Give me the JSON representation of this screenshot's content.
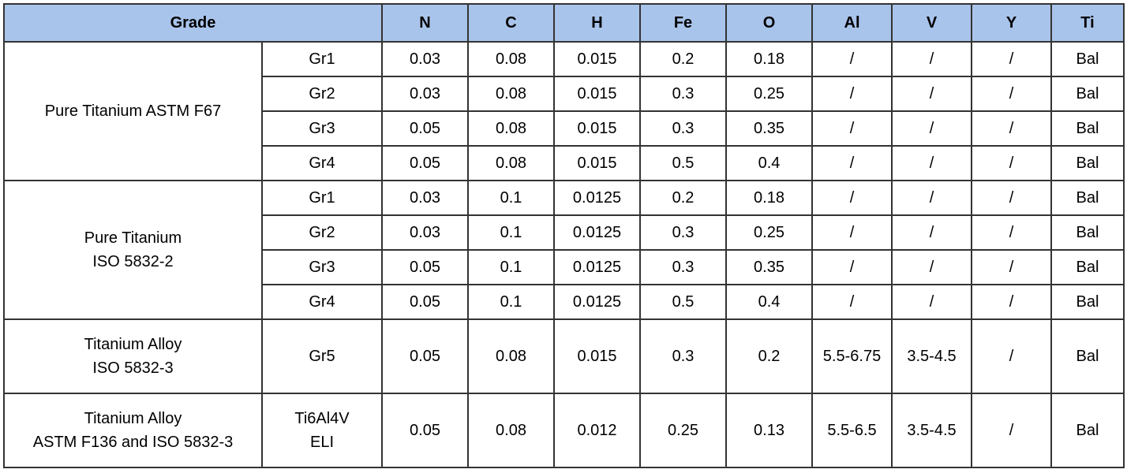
{
  "header": {
    "grade": "Grade",
    "elements": [
      "N",
      "C",
      "H",
      "Fe",
      "O",
      "Al",
      "V",
      "Y",
      "Ti"
    ]
  },
  "groups": [
    {
      "name": "Pure Titanium ASTM F67",
      "rows": [
        {
          "grade": "Gr1",
          "values": [
            "0.03",
            "0.08",
            "0.015",
            "0.2",
            "0.18",
            "/",
            "/",
            "/",
            "Bal"
          ]
        },
        {
          "grade": "Gr2",
          "values": [
            "0.03",
            "0.08",
            "0.015",
            "0.3",
            "0.25",
            "/",
            "/",
            "/",
            "Bal"
          ]
        },
        {
          "grade": "Gr3",
          "values": [
            "0.05",
            "0.08",
            "0.015",
            "0.3",
            "0.35",
            "/",
            "/",
            "/",
            "Bal"
          ]
        },
        {
          "grade": "Gr4",
          "values": [
            "0.05",
            "0.08",
            "0.015",
            "0.5",
            "0.4",
            "/",
            "/",
            "/",
            "Bal"
          ]
        }
      ]
    },
    {
      "name": "Pure Titanium\nISO 5832-2",
      "rows": [
        {
          "grade": "Gr1",
          "values": [
            "0.03",
            "0.1",
            "0.0125",
            "0.2",
            "0.18",
            "/",
            "/",
            "/",
            "Bal"
          ]
        },
        {
          "grade": "Gr2",
          "values": [
            "0.03",
            "0.1",
            "0.0125",
            "0.3",
            "0.25",
            "/",
            "/",
            "/",
            "Bal"
          ]
        },
        {
          "grade": "Gr3",
          "values": [
            "0.05",
            "0.1",
            "0.0125",
            "0.3",
            "0.35",
            "/",
            "/",
            "/",
            "Bal"
          ]
        },
        {
          "grade": "Gr4",
          "values": [
            "0.05",
            "0.1",
            "0.0125",
            "0.5",
            "0.4",
            "/",
            "/",
            "/",
            "Bal"
          ]
        }
      ]
    },
    {
      "name": "Titanium Alloy\nISO 5832-3",
      "rows": [
        {
          "grade": "Gr5",
          "values": [
            "0.05",
            "0.08",
            "0.015",
            "0.3",
            "0.2",
            "5.5-6.75",
            "3.5-4.5",
            "/",
            "Bal"
          ]
        }
      ]
    },
    {
      "name": "Titanium Alloy\nASTM F136 and ISO 5832-3",
      "rows": [
        {
          "grade": "Ti6Al4V\nELI",
          "values": [
            "0.05",
            "0.08",
            "0.012",
            "0.25",
            "0.13",
            "5.5-6.5",
            "3.5-4.5",
            "/",
            "Bal"
          ]
        }
      ]
    }
  ]
}
